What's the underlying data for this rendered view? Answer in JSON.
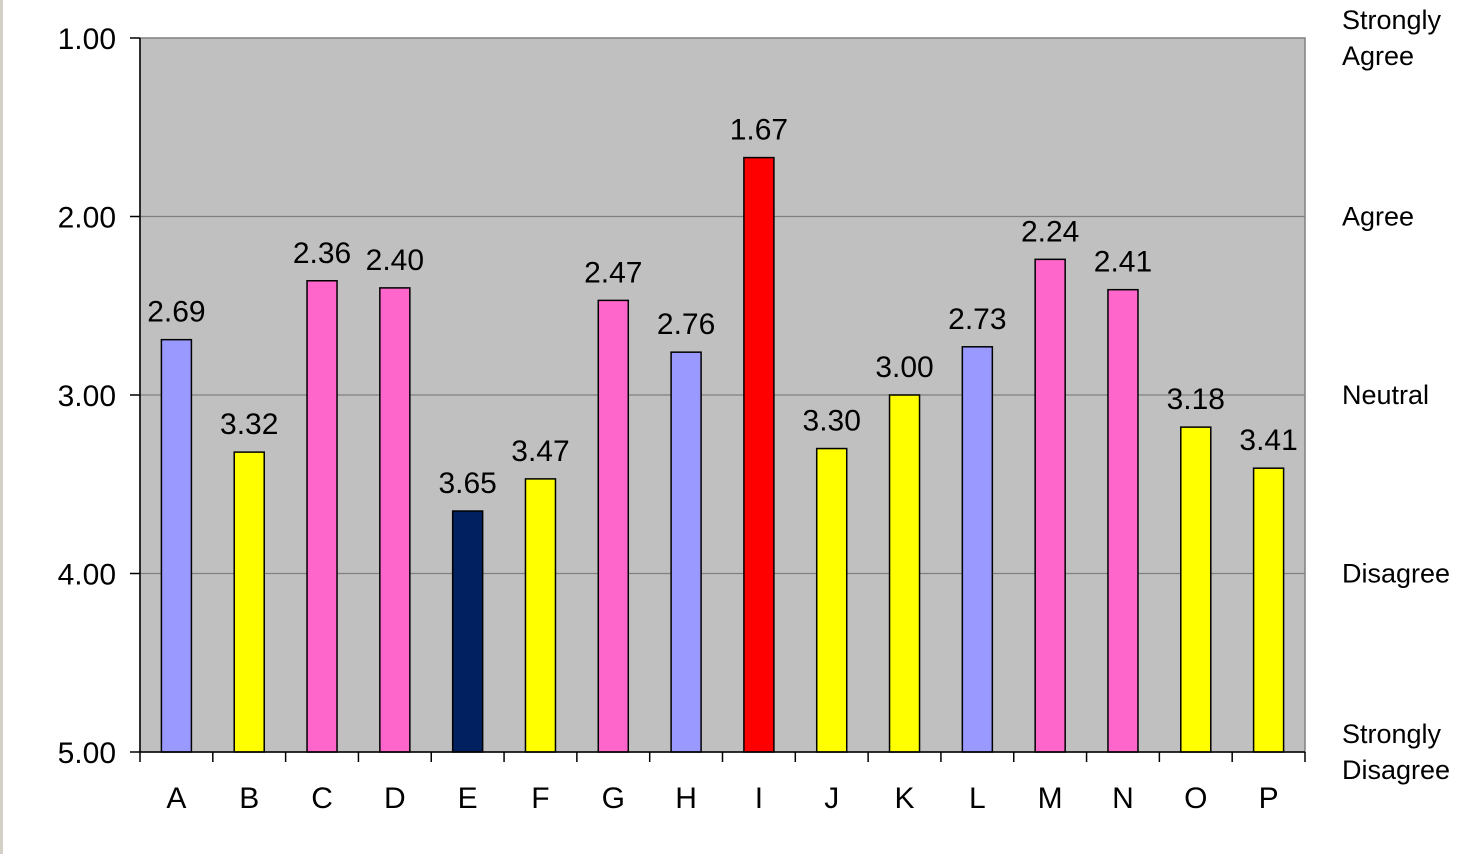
{
  "chart_data": {
    "type": "bar",
    "categories": [
      "A",
      "B",
      "C",
      "D",
      "E",
      "F",
      "G",
      "H",
      "I",
      "J",
      "K",
      "L",
      "M",
      "N",
      "O",
      "P"
    ],
    "values": [
      2.69,
      3.32,
      2.36,
      2.4,
      3.65,
      3.47,
      2.47,
      2.76,
      1.67,
      3.3,
      3.0,
      2.73,
      2.24,
      2.41,
      3.18,
      3.41
    ],
    "data_labels": [
      "2.69",
      "3.32",
      "2.36",
      "2.40",
      "3.65",
      "3.47",
      "2.47",
      "2.76",
      "1.67",
      "3.30",
      "3.00",
      "2.73",
      "2.24",
      "2.41",
      "3.18",
      "3.41"
    ],
    "bar_colors": [
      "#9999ff",
      "#ffff00",
      "#ff66cc",
      "#ff66cc",
      "#002060",
      "#ffff00",
      "#ff66cc",
      "#9999ff",
      "#ff0000",
      "#ffff00",
      "#ffff00",
      "#9999ff",
      "#ff66cc",
      "#ff66cc",
      "#ffff00",
      "#ffff00"
    ],
    "y_axis": {
      "ylim": [
        1,
        5
      ],
      "inverted": true,
      "ticks": [
        1,
        2,
        3,
        4,
        5
      ],
      "tick_labels": [
        "1.00",
        "2.00",
        "3.00",
        "4.00",
        "5.00"
      ]
    },
    "scale_labels": [
      {
        "value": 1,
        "lines": [
          "Strongly",
          "Agree"
        ]
      },
      {
        "value": 2,
        "lines": [
          "Agree"
        ]
      },
      {
        "value": 3,
        "lines": [
          "Neutral"
        ]
      },
      {
        "value": 4,
        "lines": [
          "Disagree"
        ]
      },
      {
        "value": 5,
        "lines": [
          "Strongly",
          "Disagree"
        ]
      }
    ],
    "title": "",
    "xlabel": "",
    "ylabel": "",
    "grid": true,
    "plot_background": "#c0c0c0",
    "gridline_color": "#808080"
  }
}
